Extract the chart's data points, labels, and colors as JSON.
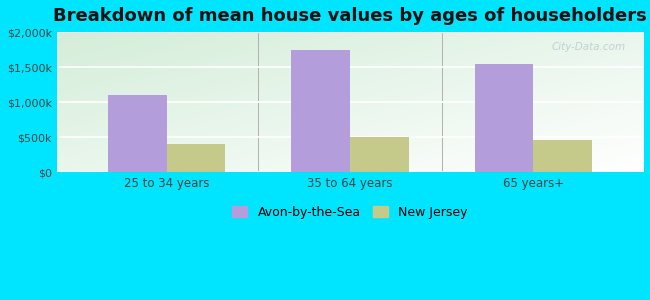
{
  "title": "Breakdown of mean house values by ages of householders",
  "categories": [
    "25 to 34 years",
    "35 to 64 years",
    "65 years+"
  ],
  "series": {
    "Avon-by-the-Sea": [
      1100000,
      1750000,
      1550000
    ],
    "New Jersey": [
      400000,
      510000,
      460000
    ]
  },
  "bar_colors": {
    "Avon-by-the-Sea": "#b39ddb",
    "New Jersey": "#c5c98a"
  },
  "background_outer": "#00e5ff",
  "ylim": [
    0,
    2000000
  ],
  "yticks": [
    0,
    500000,
    1000000,
    1500000,
    2000000
  ],
  "ytick_labels": [
    "$0",
    "$500k",
    "$1,000k",
    "$1,500k",
    "$2,000k"
  ],
  "title_fontsize": 13,
  "legend_labels": [
    "Avon-by-the-Sea",
    "New Jersey"
  ],
  "bar_width": 0.32,
  "watermark": "City-Data.com"
}
